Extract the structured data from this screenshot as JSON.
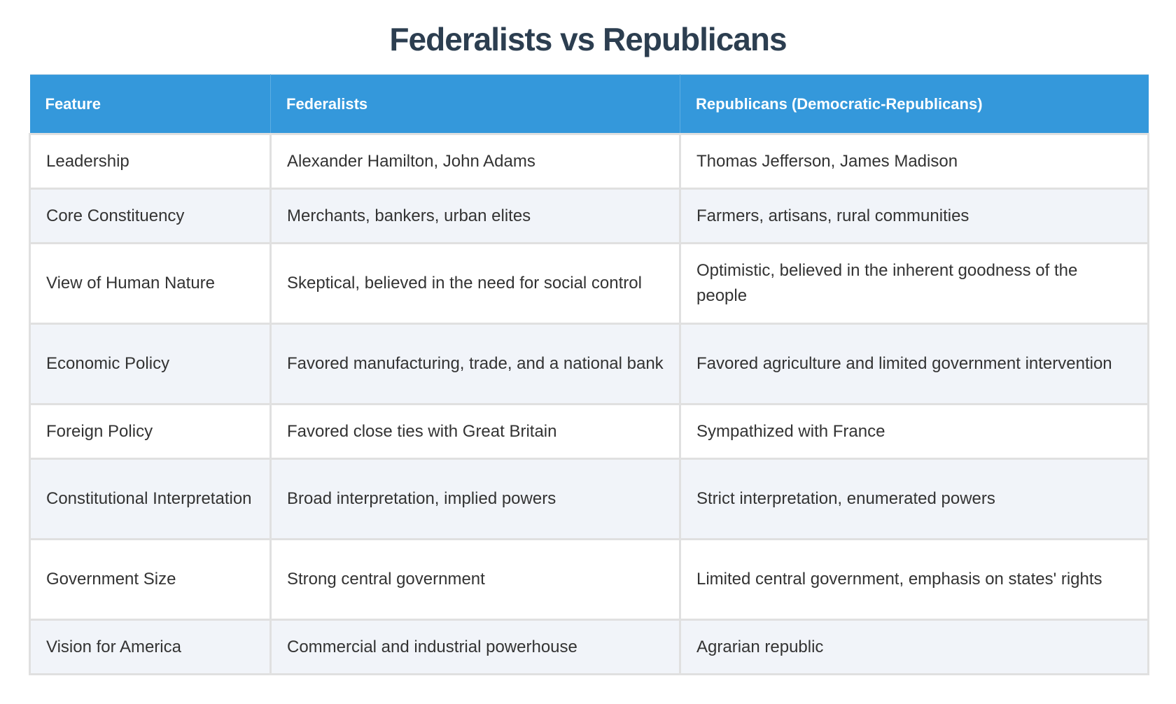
{
  "title": "Federalists vs Republicans",
  "colors": {
    "title": "#2c3e50",
    "header_bg": "#3498db",
    "header_text": "#ffffff",
    "row_alt_bg": "#f1f4f9",
    "border": "#e0e0e0",
    "body_text": "#333333"
  },
  "table": {
    "headers": [
      "Feature",
      "Federalists",
      "Republicans (Democratic-Republicans)"
    ],
    "rows": [
      {
        "feature": "Leadership",
        "federalists": "Alexander Hamilton, John Adams",
        "republicans": "Thomas Jefferson, James Madison"
      },
      {
        "feature": "Core Constituency",
        "federalists": "Merchants, bankers, urban elites",
        "republicans": "Farmers, artisans, rural communities"
      },
      {
        "feature": "View of Human Nature",
        "federalists": "Skeptical, believed in the need for social control",
        "republicans": "Optimistic, believed in the inherent goodness of the people"
      },
      {
        "feature": "Economic Policy",
        "federalists": "Favored manufacturing, trade, and a national bank",
        "republicans": "Favored agriculture and limited government intervention"
      },
      {
        "feature": "Foreign Policy",
        "federalists": "Favored close ties with Great Britain",
        "republicans": "Sympathized with France"
      },
      {
        "feature": "Constitutional Interpretation",
        "federalists": "Broad interpretation, implied powers",
        "republicans": "Strict interpretation, enumerated powers"
      },
      {
        "feature": "Government Size",
        "federalists": "Strong central government",
        "republicans": "Limited central government, emphasis on states' rights"
      },
      {
        "feature": "Vision for America",
        "federalists": "Commercial and industrial powerhouse",
        "republicans": "Agrarian republic"
      }
    ]
  }
}
